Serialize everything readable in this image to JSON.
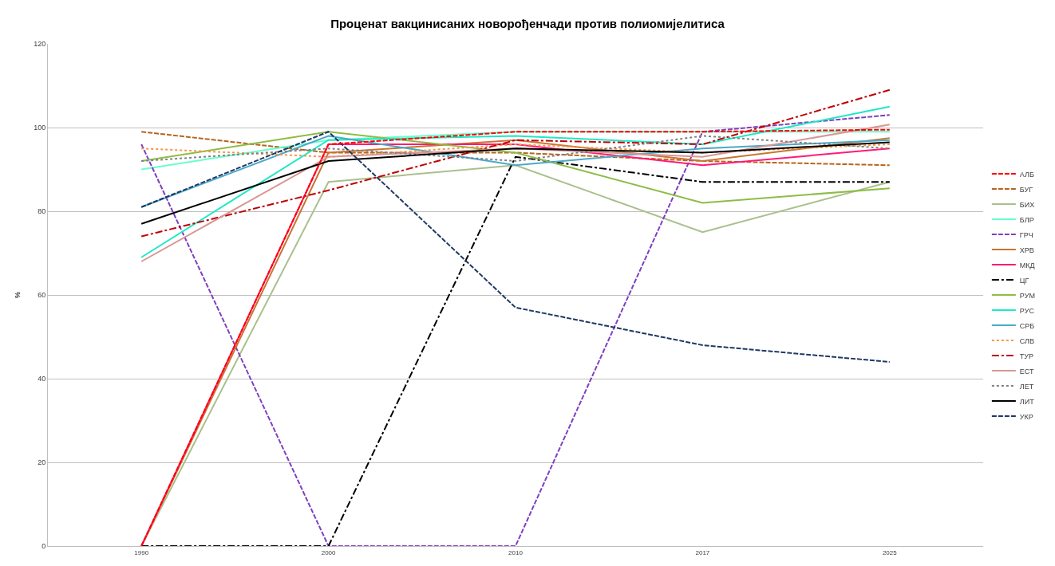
{
  "chart_data": {
    "type": "line",
    "title": "Проценат вакцинисаних новорођенчади против полиомијелитиса",
    "ylabel": "%",
    "categories": [
      "1990",
      "2000",
      "2010",
      "2017",
      "2025"
    ],
    "ylim": [
      0,
      120
    ],
    "yticks": [
      0,
      20,
      40,
      60,
      80,
      100,
      120
    ],
    "grid": "y",
    "legend": "right",
    "marker": "none",
    "series": [
      {
        "name": "АЛБ",
        "color": "#ff0000",
        "line_style": "dashed",
        "values": [
          0,
          96,
          99,
          99,
          99.5
        ]
      },
      {
        "name": "БУГ",
        "color": "#b5651d",
        "line_style": "dashed",
        "values": [
          99,
          94,
          94,
          92,
          91
        ]
      },
      {
        "name": "БИХ",
        "color": "#a9c08c",
        "line_style": "solid",
        "values": [
          0,
          87,
          91,
          75,
          87
        ]
      },
      {
        "name": "БЛР",
        "color": "#66ffcc",
        "line_style": "solid",
        "values": [
          90,
          97,
          99,
          99,
          99
        ]
      },
      {
        "name": "ГРЧ",
        "color": "#7f3fbf",
        "line_style": "dashed",
        "values": [
          96,
          0,
          0,
          99,
          103
        ]
      },
      {
        "name": "ХРВ",
        "color": "#c87533",
        "line_style": "solid",
        "values": [
          0,
          94,
          97,
          92,
          97.5
        ]
      },
      {
        "name": "МКД",
        "color": "#ff1a75",
        "line_style": "solid",
        "values": [
          0,
          96,
          96,
          91,
          95
        ]
      },
      {
        "name": "ЦГ",
        "color": "#000000",
        "line_style": "dashdot",
        "values": [
          0,
          0,
          93,
          87,
          87
        ]
      },
      {
        "name": "РУМ",
        "color": "#8fbc45",
        "line_style": "solid",
        "values": [
          92,
          99,
          94,
          82,
          85.5
        ]
      },
      {
        "name": "РУС",
        "color": "#1de9c6",
        "line_style": "solid",
        "values": [
          69,
          97,
          98,
          96,
          105
        ]
      },
      {
        "name": "СРБ",
        "color": "#4ba9c8",
        "line_style": "solid",
        "values": [
          81,
          98,
          91,
          95,
          97
        ]
      },
      {
        "name": "СЛВ",
        "color": "#f79646",
        "line_style": "dotted",
        "values": [
          95,
          93,
          96,
          94,
          96
        ]
      },
      {
        "name": "ТУР",
        "color": "#c00000",
        "line_style": "dashdot",
        "values": [
          74,
          85,
          97,
          96,
          109
        ]
      },
      {
        "name": "ЕСТ",
        "color": "#d99694",
        "line_style": "solid",
        "values": [
          68,
          93,
          95,
          93,
          100.7
        ]
      },
      {
        "name": "ЛЕТ",
        "color": "#808080",
        "line_style": "dotted",
        "values": [
          92,
          95,
          92,
          98,
          95
        ]
      },
      {
        "name": "ЛИТ",
        "color": "#000000",
        "line_style": "solid",
        "values": [
          77,
          92,
          95,
          94,
          96.5
        ]
      },
      {
        "name": "УКР",
        "color": "#1f3864",
        "line_style": "dashed",
        "values": [
          81,
          99,
          57,
          48,
          44
        ]
      }
    ]
  }
}
